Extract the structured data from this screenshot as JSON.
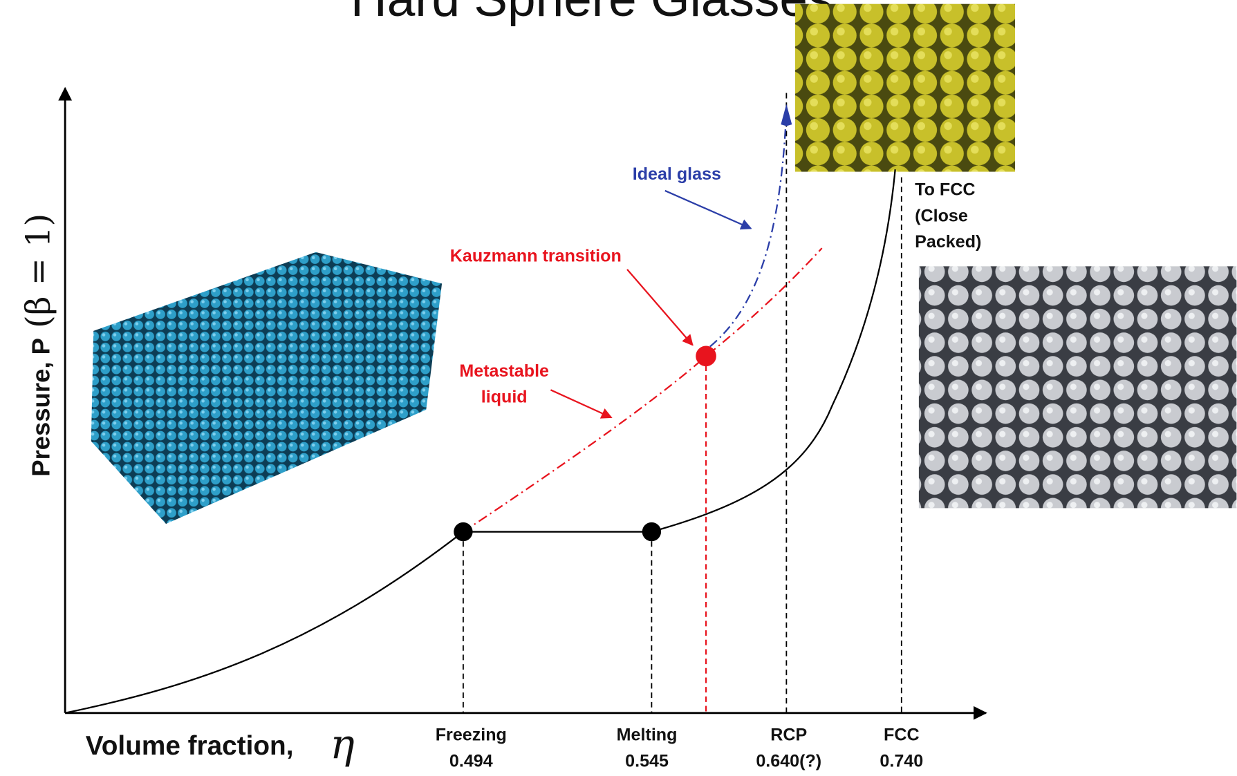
{
  "title": "Hard Sphere Glasses",
  "axes": {
    "x_label": "Volume fraction,",
    "x_symbol": "η",
    "y_label": "Pressure, P",
    "y_symbol": "(β = 1)"
  },
  "markers": [
    {
      "name": "Freezing",
      "value": "0.494"
    },
    {
      "name": "Melting",
      "value": "0.545"
    },
    {
      "name": "RCP",
      "value": "0.640(?)"
    },
    {
      "name": "FCC",
      "value": "0.740"
    }
  ],
  "annotations": {
    "ideal_glass": "Ideal glass",
    "kauzmann": "Kauzmann transition",
    "metastable": [
      "Metastable",
      "liquid"
    ],
    "to_fcc": [
      "To FCC",
      "(Close",
      "Packed)"
    ]
  }
}
